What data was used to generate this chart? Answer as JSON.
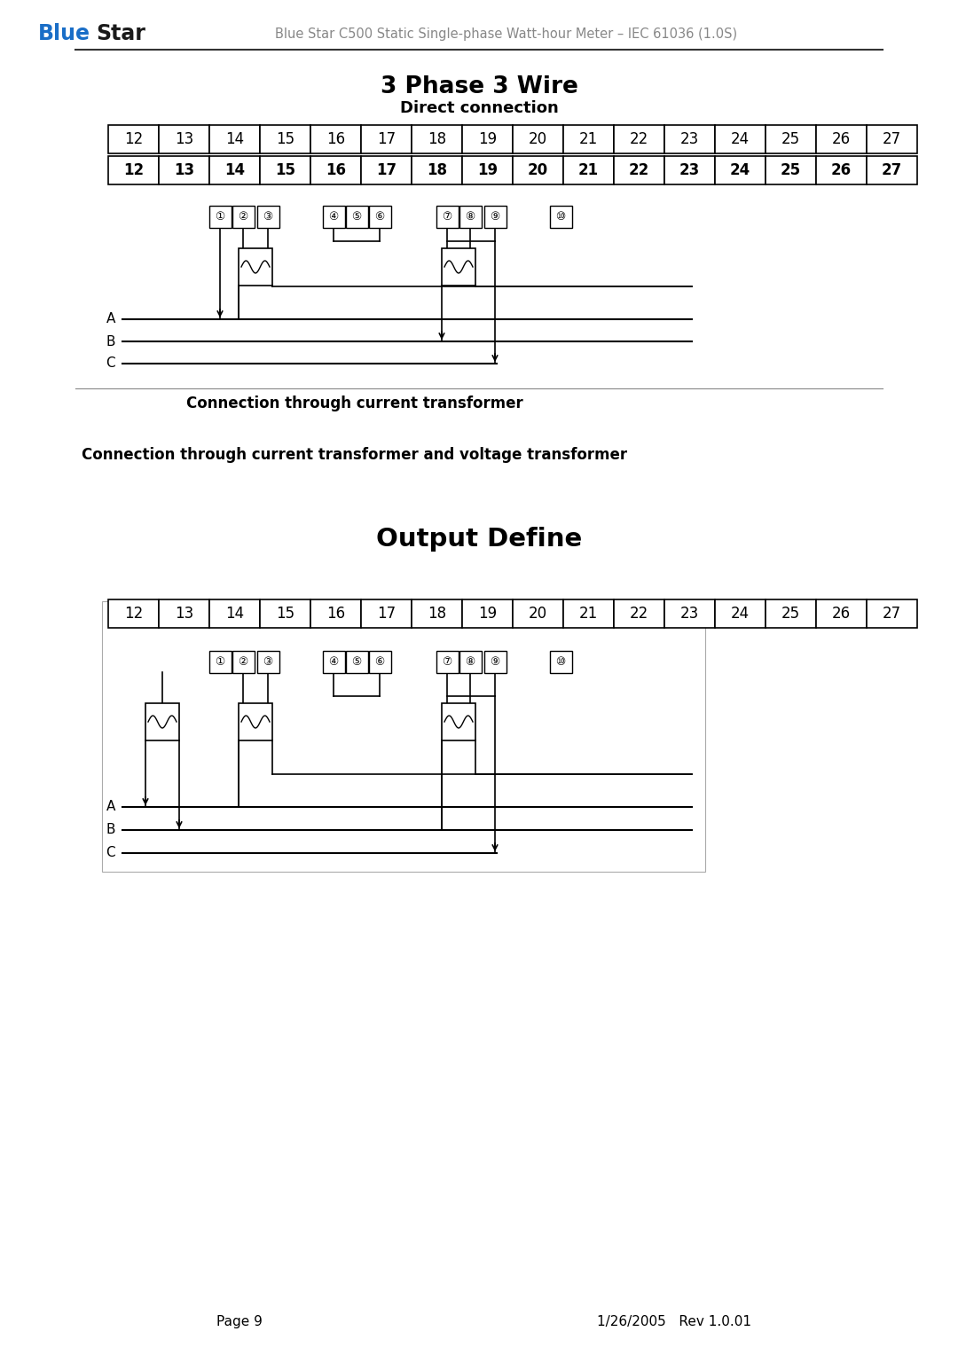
{
  "page_title": "3 Phase 3 Wire",
  "page_subtitle": "Direct connection",
  "header_text": "Blue Star C500 Static Single-phase Watt-hour Meter – IEC 61036 (1.0S)",
  "terminal_numbers": [
    12,
    13,
    14,
    15,
    16,
    17,
    18,
    19,
    20,
    21,
    22,
    23,
    24,
    25,
    26,
    27
  ],
  "section1_caption": "Connection through current transformer",
  "section2_caption": "Connection through current transformer and voltage transformer",
  "section3_title": "Output Define",
  "footer_left": "Page 9",
  "footer_right": "1/26/2005   Rev 1.0.01",
  "bg_color": "#ffffff",
  "line_color": "#000000",
  "logo_color_blue": "#1a6ec7",
  "logo_color_star": "#1a1a1a",
  "header_gray": "#888888"
}
